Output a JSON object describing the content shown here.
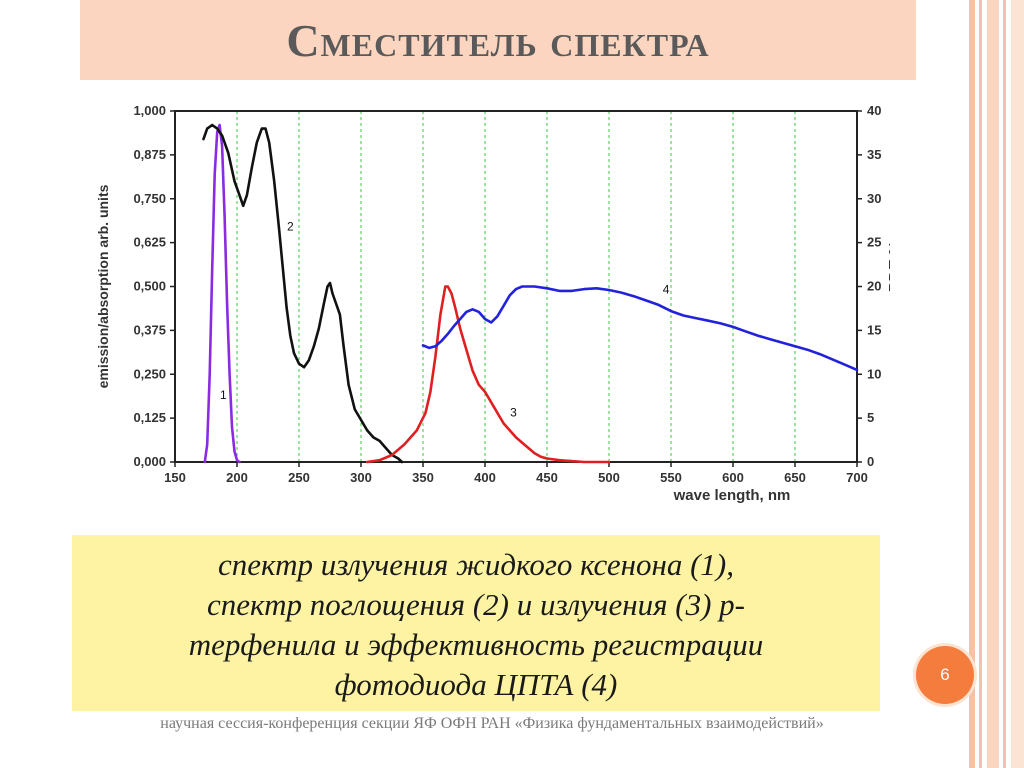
{
  "slide": {
    "title": "Сместитель спектра",
    "caption_lines": [
      "спектр излучения жидкого ксенона (1),",
      "спектр поглощения (2) и излучения (3) p-",
      "терфенила и эффективность регистрации",
      "фотодиода ЦПТА (4)"
    ],
    "slide_number": "6",
    "footer": "научная сессия-конференция секции ЯФ ОФН РАН «Физика фундаментальных взаимодействий»",
    "colors": {
      "title_bar": "#fbd5bf",
      "caption_box": "#fdf3a3",
      "badge": "#f47c3c"
    }
  },
  "chart_data": {
    "type": "line",
    "xlabel": "wave length, nm",
    "ylabel": "emission/absorption arb. units",
    "y2label": "PDE %",
    "xlim": [
      150,
      700
    ],
    "ylim": [
      0,
      1
    ],
    "y2lim": [
      0,
      40
    ],
    "grid": "vertical dashed",
    "x_ticks": [
      "150",
      "200",
      "250",
      "300",
      "350",
      "400",
      "450",
      "500",
      "550",
      "600",
      "650",
      "700"
    ],
    "y_ticks": [
      "0,000",
      "0,125",
      "0,250",
      "0,375",
      "0,500",
      "0,625",
      "0,750",
      "0,875",
      "1,000"
    ],
    "y2_ticks": [
      "0",
      "5",
      "10",
      "15",
      "20",
      "25",
      "30",
      "35",
      "40"
    ],
    "series": [
      {
        "label": "1",
        "color": "#8a2be2",
        "axis": "left",
        "label_pos": [
          189,
          0.18
        ],
        "points": [
          [
            174,
            0
          ],
          [
            176,
            0.05
          ],
          [
            178,
            0.25
          ],
          [
            180,
            0.55
          ],
          [
            182,
            0.82
          ],
          [
            184,
            0.94
          ],
          [
            186,
            0.96
          ],
          [
            188,
            0.9
          ],
          [
            190,
            0.7
          ],
          [
            192,
            0.45
          ],
          [
            194,
            0.25
          ],
          [
            196,
            0.1
          ],
          [
            198,
            0.03
          ],
          [
            200,
            0.005
          ],
          [
            202,
            0
          ]
        ]
      },
      {
        "label": "2",
        "color": "#111111",
        "axis": "left",
        "label_pos": [
          243,
          0.66
        ],
        "points": [
          [
            173,
            0.92
          ],
          [
            176,
            0.95
          ],
          [
            180,
            0.96
          ],
          [
            184,
            0.95
          ],
          [
            188,
            0.93
          ],
          [
            193,
            0.88
          ],
          [
            198,
            0.8
          ],
          [
            202,
            0.76
          ],
          [
            205,
            0.73
          ],
          [
            208,
            0.76
          ],
          [
            212,
            0.84
          ],
          [
            216,
            0.91
          ],
          [
            220,
            0.95
          ],
          [
            223,
            0.95
          ],
          [
            226,
            0.91
          ],
          [
            230,
            0.8
          ],
          [
            234,
            0.66
          ],
          [
            237,
            0.55
          ],
          [
            240,
            0.44
          ],
          [
            243,
            0.36
          ],
          [
            246,
            0.31
          ],
          [
            250,
            0.28
          ],
          [
            254,
            0.27
          ],
          [
            258,
            0.29
          ],
          [
            262,
            0.33
          ],
          [
            266,
            0.38
          ],
          [
            270,
            0.45
          ],
          [
            273,
            0.5
          ],
          [
            275,
            0.51
          ],
          [
            277,
            0.48
          ],
          [
            280,
            0.45
          ],
          [
            283,
            0.42
          ],
          [
            286,
            0.33
          ],
          [
            290,
            0.22
          ],
          [
            295,
            0.15
          ],
          [
            300,
            0.12
          ],
          [
            305,
            0.09
          ],
          [
            310,
            0.07
          ],
          [
            315,
            0.06
          ],
          [
            320,
            0.04
          ],
          [
            325,
            0.02
          ],
          [
            330,
            0.01
          ],
          [
            333,
            0.0
          ]
        ]
      },
      {
        "label": "3",
        "color": "#e02020",
        "axis": "left",
        "label_pos": [
          423,
          0.13
        ],
        "points": [
          [
            305,
            0
          ],
          [
            315,
            0.005
          ],
          [
            325,
            0.02
          ],
          [
            335,
            0.05
          ],
          [
            345,
            0.09
          ],
          [
            352,
            0.14
          ],
          [
            356,
            0.2
          ],
          [
            360,
            0.3
          ],
          [
            364,
            0.42
          ],
          [
            368,
            0.5
          ],
          [
            370,
            0.5
          ],
          [
            373,
            0.48
          ],
          [
            376,
            0.44
          ],
          [
            380,
            0.38
          ],
          [
            385,
            0.32
          ],
          [
            390,
            0.26
          ],
          [
            395,
            0.22
          ],
          [
            400,
            0.2
          ],
          [
            405,
            0.17
          ],
          [
            410,
            0.14
          ],
          [
            415,
            0.11
          ],
          [
            420,
            0.09
          ],
          [
            425,
            0.07
          ],
          [
            430,
            0.055
          ],
          [
            435,
            0.04
          ],
          [
            440,
            0.025
          ],
          [
            445,
            0.015
          ],
          [
            450,
            0.01
          ],
          [
            460,
            0.005
          ],
          [
            480,
            0.0
          ],
          [
            500,
            0
          ]
        ]
      },
      {
        "label": "4",
        "color": "#2222dd",
        "axis": "right",
        "label_pos": [
          546,
          19.2
        ],
        "points": [
          [
            350,
            13.3
          ],
          [
            355,
            13.0
          ],
          [
            360,
            13.2
          ],
          [
            365,
            13.8
          ],
          [
            370,
            14.6
          ],
          [
            375,
            15.5
          ],
          [
            380,
            16.3
          ],
          [
            385,
            17.1
          ],
          [
            390,
            17.4
          ],
          [
            395,
            17.1
          ],
          [
            400,
            16.3
          ],
          [
            405,
            15.9
          ],
          [
            410,
            16.6
          ],
          [
            415,
            17.8
          ],
          [
            420,
            19.0
          ],
          [
            425,
            19.7
          ],
          [
            430,
            20.0
          ],
          [
            440,
            20.0
          ],
          [
            450,
            19.8
          ],
          [
            460,
            19.5
          ],
          [
            470,
            19.5
          ],
          [
            480,
            19.7
          ],
          [
            490,
            19.8
          ],
          [
            500,
            19.6
          ],
          [
            510,
            19.3
          ],
          [
            520,
            18.9
          ],
          [
            530,
            18.4
          ],
          [
            540,
            17.9
          ],
          [
            550,
            17.2
          ],
          [
            560,
            16.7
          ],
          [
            570,
            16.4
          ],
          [
            580,
            16.1
          ],
          [
            590,
            15.8
          ],
          [
            600,
            15.4
          ],
          [
            610,
            14.9
          ],
          [
            620,
            14.4
          ],
          [
            630,
            14.0
          ],
          [
            640,
            13.6
          ],
          [
            650,
            13.2
          ],
          [
            660,
            12.8
          ],
          [
            670,
            12.3
          ],
          [
            680,
            11.7
          ],
          [
            690,
            11.1
          ],
          [
            700,
            10.5
          ]
        ]
      }
    ]
  }
}
